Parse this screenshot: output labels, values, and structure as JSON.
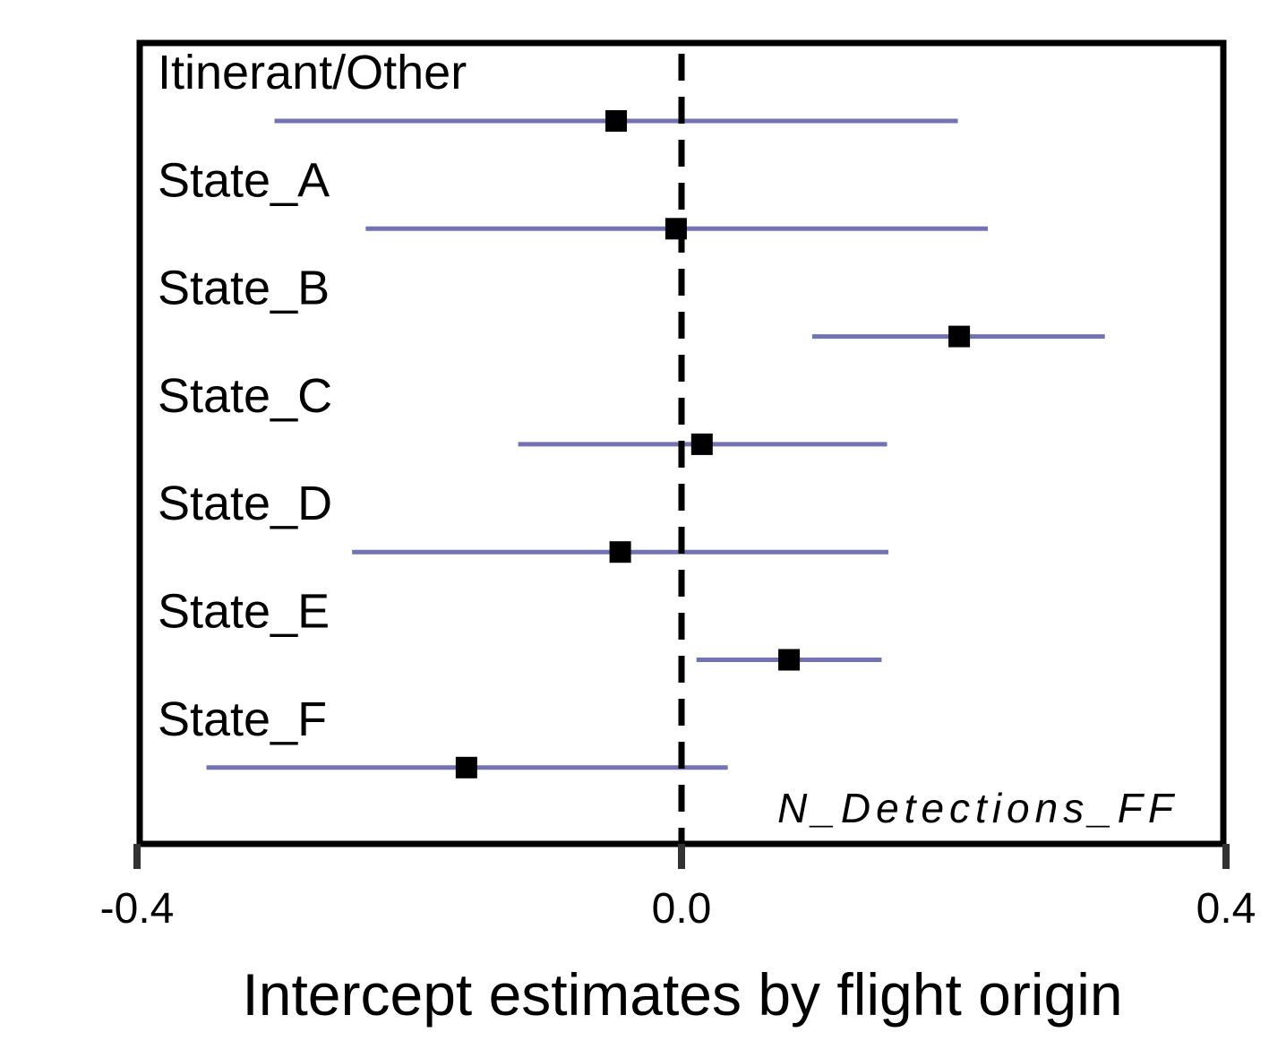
{
  "chart_data": {
    "type": "forest",
    "xlabel": "Intercept estimates by flight origin",
    "panel_label": "N_Detections_FF",
    "xlim": [
      -0.4,
      0.4
    ],
    "xticks": [
      "-0.4",
      "0.0",
      "0.4"
    ],
    "reference_line": 0.0,
    "rows": [
      {
        "label": "Itinerant/Other",
        "estimate": -0.048,
        "lower": -0.299,
        "upper": 0.203
      },
      {
        "label": "State_A",
        "estimate": -0.004,
        "lower": -0.232,
        "upper": 0.225
      },
      {
        "label": "State_B",
        "estimate": 0.204,
        "lower": 0.096,
        "upper": 0.311
      },
      {
        "label": "State_C",
        "estimate": 0.015,
        "lower": -0.12,
        "upper": 0.151
      },
      {
        "label": "State_D",
        "estimate": -0.045,
        "lower": -0.242,
        "upper": 0.152
      },
      {
        "label": "State_E",
        "estimate": 0.079,
        "lower": 0.011,
        "upper": 0.147
      },
      {
        "label": "State_F",
        "estimate": -0.158,
        "lower": -0.349,
        "upper": 0.034
      }
    ],
    "colors": {
      "interval": "#7373b3",
      "point": "#000000",
      "frame": "#000000",
      "tick": "#333333"
    }
  }
}
